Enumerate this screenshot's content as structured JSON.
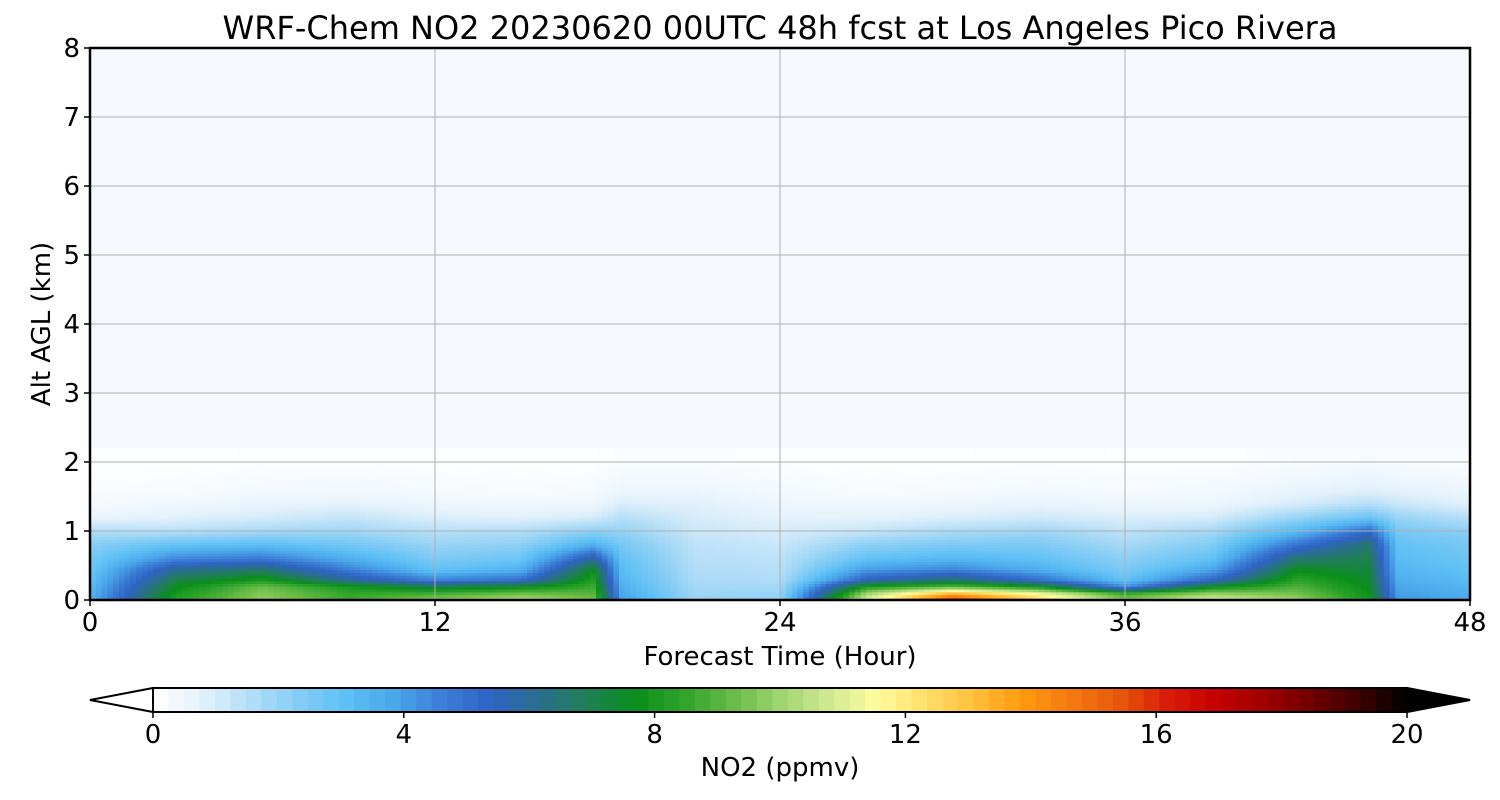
{
  "chart_data": {
    "type": "heatmap",
    "title": "WRF-Chem NO2  20230620 00UTC 48h fcst at Los Angeles Pico Rivera",
    "xlabel": "Forecast Time (Hour)",
    "ylabel": "Alt AGL (km)",
    "xlim": [
      0,
      48
    ],
    "ylim": [
      0,
      8
    ],
    "xticks": [
      0,
      12,
      24,
      36,
      48
    ],
    "yticks": [
      0,
      1,
      2,
      3,
      4,
      5,
      6,
      7,
      8
    ],
    "grid": true,
    "colorbar": {
      "label": "NO2  (ppmv)",
      "range": [
        0,
        20
      ],
      "ticks": [
        0,
        4,
        8,
        12,
        16,
        20
      ],
      "extend": "both",
      "orientation": "horizontal",
      "colors": [
        "#ffffff",
        "#e3f1fb",
        "#b4def7",
        "#86cdf5",
        "#5ec0f5",
        "#4aa6ea",
        "#3b7fd6",
        "#2f63c4",
        "#2a6e8e",
        "#1f7f56",
        "#0a8f1a",
        "#2fa32b",
        "#67bb46",
        "#9fd56e",
        "#cfe990",
        "#fffb9e",
        "#ffe06b",
        "#ffbf3c",
        "#ff9b10",
        "#f57a10",
        "#e85a0a",
        "#d81d07",
        "#c70000",
        "#a10000",
        "#700000",
        "#3d0000",
        "#000000"
      ]
    },
    "x": [
      0,
      3,
      6,
      9,
      12,
      15,
      17.5,
      18.5,
      21,
      24,
      27,
      30,
      33,
      36,
      39,
      42,
      44.5,
      45.5,
      48
    ],
    "series": [
      {
        "level_km": 0.0,
        "values": [
          3.5,
          8.3,
          9.8,
          8.6,
          9.8,
          10.4,
          9.4,
          4.0,
          2.0,
          2.2,
          11.2,
          16.5,
          13.0,
          9.8,
          11.3,
          9.9,
          8.0,
          4.2,
          3.8
        ]
      },
      {
        "level_km": 0.1,
        "values": [
          3.4,
          8.0,
          9.6,
          8.5,
          8.7,
          9.3,
          9.0,
          3.8,
          1.9,
          2.0,
          10.0,
          13.2,
          11.3,
          8.5,
          9.8,
          9.4,
          7.8,
          4.0,
          3.6
        ]
      },
      {
        "level_km": 0.2,
        "values": [
          3.2,
          7.6,
          9.3,
          8.0,
          7.0,
          7.6,
          8.6,
          3.6,
          1.8,
          1.8,
          8.1,
          9.0,
          7.8,
          4.2,
          7.6,
          8.9,
          7.6,
          3.8,
          3.4
        ]
      },
      {
        "level_km": 0.3,
        "values": [
          3.0,
          7.0,
          8.0,
          6.0,
          4.5,
          5.0,
          8.2,
          3.4,
          1.7,
          1.6,
          5.5,
          6.5,
          5.0,
          3.0,
          5.2,
          8.4,
          7.4,
          3.6,
          3.2
        ]
      },
      {
        "level_km": 0.45,
        "values": [
          2.8,
          6.1,
          6.6,
          4.6,
          3.0,
          3.5,
          7.6,
          3.2,
          1.6,
          1.5,
          4.0,
          4.5,
          3.6,
          2.5,
          3.8,
          7.6,
          7.2,
          3.4,
          3.0
        ]
      },
      {
        "level_km": 0.6,
        "values": [
          2.6,
          4.5,
          4.8,
          3.6,
          2.5,
          2.8,
          6.0,
          3.0,
          1.5,
          1.4,
          3.0,
          3.4,
          3.0,
          2.2,
          3.0,
          6.6,
          7.0,
          3.2,
          2.8
        ]
      },
      {
        "level_km": 0.8,
        "values": [
          2.3,
          3.0,
          3.2,
          2.7,
          2.0,
          2.2,
          3.6,
          2.6,
          1.4,
          1.2,
          2.2,
          2.5,
          2.5,
          1.8,
          2.4,
          5.0,
          6.6,
          3.0,
          2.6
        ]
      },
      {
        "level_km": 1.0,
        "values": [
          1.6,
          1.5,
          1.8,
          1.9,
          1.5,
          1.6,
          2.2,
          2.1,
          1.2,
          1.0,
          1.3,
          1.7,
          1.9,
          1.4,
          1.8,
          3.3,
          5.2,
          2.6,
          2.2
        ]
      },
      {
        "level_km": 1.2,
        "values": [
          0.6,
          0.8,
          1.0,
          1.3,
          0.9,
          0.8,
          1.0,
          1.5,
          1.0,
          0.7,
          0.7,
          0.9,
          1.1,
          0.9,
          1.0,
          2.0,
          2.8,
          2.0,
          1.5
        ]
      },
      {
        "level_km": 1.4,
        "values": [
          0.3,
          0.4,
          0.6,
          0.7,
          0.5,
          0.4,
          0.5,
          0.9,
          0.8,
          0.5,
          0.4,
          0.5,
          0.6,
          0.5,
          0.5,
          1.0,
          1.5,
          1.2,
          0.8
        ]
      },
      {
        "level_km": 1.6,
        "values": [
          0.15,
          0.2,
          0.3,
          0.35,
          0.25,
          0.2,
          0.25,
          0.5,
          0.5,
          0.3,
          0.2,
          0.25,
          0.3,
          0.25,
          0.3,
          0.6,
          0.8,
          0.7,
          0.5
        ]
      },
      {
        "level_km": 2.0,
        "values": [
          0.05,
          0.05,
          0.1,
          0.1,
          0.08,
          0.05,
          0.08,
          0.15,
          0.15,
          0.1,
          0.05,
          0.08,
          0.1,
          0.08,
          0.08,
          0.2,
          0.25,
          0.2,
          0.15
        ]
      },
      {
        "level_km": 8.0,
        "values": [
          0.02,
          0.02,
          0.02,
          0.02,
          0.02,
          0.02,
          0.02,
          0.02,
          0.02,
          0.02,
          0.02,
          0.02,
          0.02,
          0.02,
          0.02,
          0.02,
          0.02,
          0.02,
          0.02
        ]
      }
    ]
  }
}
